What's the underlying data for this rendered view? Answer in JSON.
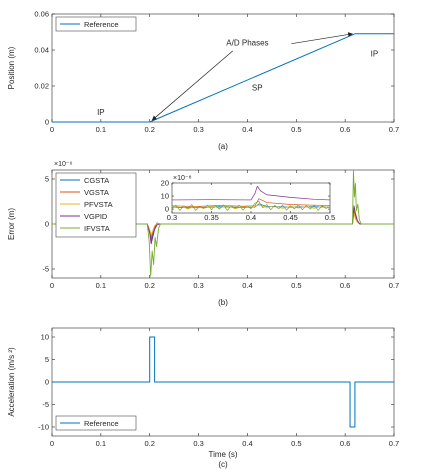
{
  "colors": {
    "reference": "#0072BD",
    "CGSTA": "#0072BD",
    "VGSTA": "#D95319",
    "PFVSTA": "#EDB120",
    "VGPID": "#7E2F8E",
    "IFVSTA": "#77AC30"
  },
  "chart_data": [
    {
      "id": "a",
      "type": "line",
      "caption": "(a)",
      "xlabel": "",
      "ylabel": "Position (m)",
      "xlim": [
        0,
        0.7
      ],
      "ylim": [
        0,
        0.06
      ],
      "xticks": [
        "0",
        "0.1",
        "0.2",
        "0.3",
        "0.4",
        "0.5",
        "0.6",
        "0.7"
      ],
      "yticks": [
        "0",
        "0.02",
        "0.04",
        "0.06"
      ],
      "legend": {
        "position": "top-left",
        "entries": [
          "Reference"
        ]
      },
      "series": [
        {
          "name": "Reference",
          "x": [
            0,
            0.2,
            0.62,
            0.7
          ],
          "y": [
            0,
            0,
            0.049,
            0.049
          ]
        }
      ],
      "annotations": [
        {
          "text": "A/D Phases",
          "x": 0.4,
          "y": 0.0425
        },
        {
          "text": "SP",
          "x": 0.42,
          "y": 0.0175
        },
        {
          "text": "IP",
          "x": 0.1,
          "y": 0.004
        },
        {
          "text": "IP",
          "x": 0.66,
          "y": 0.0365
        }
      ],
      "arrows": [
        {
          "from": [
            0.37,
            0.0395
          ],
          "to": [
            0.205,
            0.001
          ]
        },
        {
          "from": [
            0.49,
            0.0435
          ],
          "to": [
            0.615,
            0.049
          ]
        }
      ]
    },
    {
      "id": "b",
      "type": "line",
      "caption": "(b)",
      "xlabel": "",
      "ylabel": "Error (m)",
      "y_exponent": "×10⁻⁶",
      "xlim": [
        0,
        0.7
      ],
      "ylim": [
        -6,
        6
      ],
      "xticks": [
        "0",
        "0.1",
        "0.2",
        "0.3",
        "0.4",
        "0.5",
        "0.6",
        "0.7"
      ],
      "yticks": [
        "-5",
        "0",
        "5"
      ],
      "ytick_values": [
        -5,
        0,
        5
      ],
      "legend": {
        "position": "top-left",
        "entries": [
          "CGSTA",
          "VGSTA",
          "PFVSTA",
          "VGPID",
          "IFVSTA"
        ]
      },
      "series": [
        {
          "name": "CGSTA",
          "x": [
            0,
            0.195,
            0.2,
            0.203,
            0.206,
            0.21,
            0.215,
            0.22,
            0.615,
            0.618,
            0.621,
            0.625,
            0.63,
            0.7
          ],
          "y": [
            0,
            0,
            -0.8,
            -1.9,
            -1.2,
            -0.4,
            0.1,
            0,
            0,
            1.8,
            1.0,
            0.3,
            0,
            0
          ]
        },
        {
          "name": "VGSTA",
          "x": [
            0,
            0.195,
            0.2,
            0.203,
            0.206,
            0.21,
            0.215,
            0.22,
            0.615,
            0.618,
            0.621,
            0.625,
            0.63,
            0.7
          ],
          "y": [
            0,
            0,
            -0.8,
            -1.5,
            -1.0,
            -0.3,
            0.1,
            0,
            0,
            1.5,
            0.8,
            0.2,
            0,
            0
          ]
        },
        {
          "name": "PFVSTA",
          "x": [
            0,
            0.195,
            0.2,
            0.203,
            0.206,
            0.21,
            0.215,
            0.22,
            0.615,
            0.618,
            0.621,
            0.625,
            0.63,
            0.7
          ],
          "y": [
            0,
            0,
            -0.6,
            -1.2,
            -0.8,
            -0.2,
            0.05,
            0,
            0,
            1.2,
            0.6,
            0.2,
            0,
            0
          ]
        },
        {
          "name": "VGPID",
          "x": [
            0,
            0.195,
            0.2,
            0.203,
            0.206,
            0.21,
            0.215,
            0.22,
            0.615,
            0.618,
            0.621,
            0.625,
            0.63,
            0.7
          ],
          "y": [
            0,
            0,
            -1.0,
            -2.2,
            -1.5,
            -0.6,
            -0.1,
            0,
            0,
            2.0,
            1.2,
            0.4,
            0,
            0
          ]
        },
        {
          "name": "IFVSTA",
          "x": [
            0,
            0.195,
            0.199,
            0.202,
            0.205,
            0.208,
            0.211,
            0.214,
            0.218,
            0.222,
            0.615,
            0.617,
            0.619,
            0.621,
            0.623,
            0.626,
            0.629,
            0.633,
            0.7
          ],
          "y": [
            0,
            0,
            -2.0,
            -5.8,
            -3.0,
            -4.5,
            -1.5,
            -2.5,
            -0.5,
            0,
            0,
            5.9,
            3.0,
            4.5,
            1.5,
            2.2,
            0.5,
            0,
            0
          ]
        }
      ],
      "inset": {
        "y_exponent": "×10⁻⁸",
        "xlim": [
          0.3,
          0.5
        ],
        "ylim": [
          -3,
          20
        ],
        "xticks": [
          "0.3",
          "0.35",
          "0.4",
          "0.45",
          "0.5"
        ],
        "xtick_values": [
          0.3,
          0.35,
          0.4,
          0.45,
          0.5
        ],
        "yticks": [
          "0",
          "10",
          "20"
        ],
        "ytick_values": [
          0,
          10,
          20
        ],
        "series": [
          {
            "name": "CGSTA",
            "x": [
              0.3,
              0.33,
              0.36,
              0.39,
              0.405,
              0.41,
              0.42,
              0.45,
              0.48,
              0.5
            ],
            "y": [
              1.5,
              1.0,
              1.8,
              1.2,
              1.5,
              4.0,
              2.0,
              1.5,
              1.8,
              1.5
            ]
          },
          {
            "name": "VGSTA",
            "x": [
              0.3,
              0.33,
              0.36,
              0.39,
              0.405,
              0.41,
              0.42,
              0.45,
              0.48,
              0.5
            ],
            "y": [
              2.5,
              2.0,
              2.8,
              2.2,
              2.5,
              8.0,
              5.0,
              3.5,
              3.0,
              2.8
            ]
          },
          {
            "name": "PFVSTA",
            "x": [
              0.3,
              0.31,
              0.32,
              0.33,
              0.34,
              0.35,
              0.36,
              0.37,
              0.38,
              0.39,
              0.4,
              0.41,
              0.42,
              0.43,
              0.44,
              0.45,
              0.46,
              0.47,
              0.48,
              0.49,
              0.5
            ],
            "y": [
              1.0,
              2.5,
              0.2,
              2.0,
              0.5,
              2.2,
              0.8,
              2.4,
              0.3,
              1.8,
              1.0,
              3.0,
              1.0,
              2.5,
              0.5,
              2.2,
              0.8,
              2.0,
              0.5,
              2.2,
              1.0
            ]
          },
          {
            "name": "VGPID",
            "x": [
              0.3,
              0.35,
              0.4,
              0.405,
              0.408,
              0.412,
              0.42,
              0.45,
              0.48,
              0.5
            ],
            "y": [
              7.0,
              7.2,
              7.0,
              12.0,
              17.5,
              14.0,
              11.0,
              9.0,
              7.5,
              7.0
            ]
          },
          {
            "name": "IFVSTA",
            "x": [
              0.3,
              0.305,
              0.31,
              0.315,
              0.32,
              0.325,
              0.33,
              0.335,
              0.34,
              0.345,
              0.35,
              0.355,
              0.36,
              0.365,
              0.37,
              0.375,
              0.38,
              0.385,
              0.39,
              0.395,
              0.4,
              0.405,
              0.41,
              0.415,
              0.42,
              0.425,
              0.43,
              0.435,
              0.44,
              0.445,
              0.45,
              0.455,
              0.46,
              0.465,
              0.47,
              0.475,
              0.48,
              0.485,
              0.49,
              0.495,
              0.5
            ],
            "y": [
              0.5,
              3.0,
              -1.0,
              2.5,
              0.0,
              3.5,
              -1.0,
              2.0,
              0.5,
              3.0,
              -0.5,
              2.8,
              0.0,
              3.2,
              -1.0,
              2.5,
              0.5,
              3.0,
              -0.8,
              2.6,
              0.2,
              4.5,
              6.0,
              1.0,
              3.5,
              -0.5,
              2.8,
              0.3,
              3.0,
              -0.8,
              2.5,
              0.2,
              3.2,
              -0.5,
              2.8,
              0.0,
              3.0,
              -1.0,
              2.5,
              0.5,
              2.0
            ]
          }
        ]
      }
    },
    {
      "id": "c",
      "type": "line",
      "caption": "(c)",
      "xlabel": "Time (s)",
      "ylabel": "Acceleration (m/s ²)",
      "xlim": [
        0,
        0.7
      ],
      "ylim": [
        -12,
        12
      ],
      "xticks": [
        "0",
        "0.1",
        "0.2",
        "0.3",
        "0.4",
        "0.5",
        "0.6",
        "0.7"
      ],
      "yticks": [
        "-10",
        "-5",
        "0",
        "5",
        "10"
      ],
      "ytick_values": [
        -10,
        -5,
        0,
        5,
        10
      ],
      "legend": {
        "position": "bottom-left",
        "entries": [
          "Reference"
        ]
      },
      "series": [
        {
          "name": "Reference",
          "x": [
            0,
            0.2,
            0.2,
            0.21,
            0.21,
            0.61,
            0.61,
            0.62,
            0.62,
            0.7
          ],
          "y": [
            0,
            0,
            10,
            10,
            0,
            0,
            -10,
            -10,
            0,
            0
          ]
        }
      ]
    }
  ]
}
